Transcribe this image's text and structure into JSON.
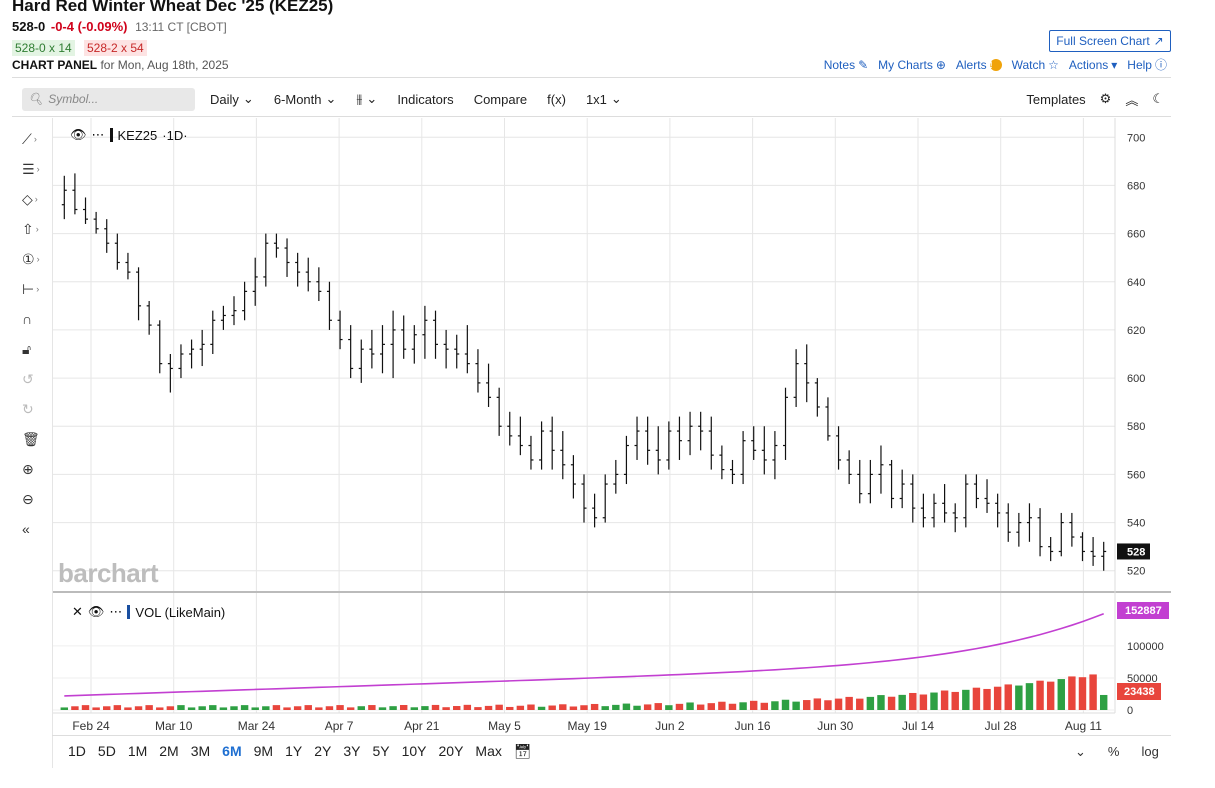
{
  "header": {
    "title": "Hard Red Winter Wheat Dec '25 (KEZ25)",
    "last": "528-0",
    "change": "-0-4 (-0.09%)",
    "time": "13:11 CT [CBOT]",
    "bid": "528-0 x 14",
    "ask": "528-2 x 54",
    "panel_label": "CHART PANEL",
    "panel_date": "for Mon, Aug 18th, 2025",
    "fullscreen_label": "Full Screen Chart",
    "links": {
      "notes": "Notes",
      "my_charts": "My Charts",
      "alerts": "Alerts",
      "watch": "Watch",
      "actions": "Actions",
      "help": "Help"
    }
  },
  "toolbar": {
    "symbol_placeholder": "Symbol...",
    "interval": "Daily",
    "period": "6-Month",
    "indicators": "Indicators",
    "compare": "Compare",
    "fx": "f(x)",
    "layout": "1x1",
    "templates": "Templates"
  },
  "legend": {
    "main": "KEZ25",
    "main_suffix": "·1D·",
    "volume": "VOL (LikeMain)"
  },
  "watermark": "barchart",
  "colors": {
    "up_volume": "#2ea043",
    "down_volume": "#e8453c",
    "volume_avg": "#c23fd1",
    "bars": "#111111",
    "accent": "#1f6fd1"
  },
  "ranges": [
    "1D",
    "5D",
    "1M",
    "2M",
    "3M",
    "6M",
    "9M",
    "1Y",
    "2Y",
    "3Y",
    "5Y",
    "10Y",
    "20Y",
    "Max"
  ],
  "active_range": "6M",
  "bottom_controls": {
    "percent": "%",
    "log": "log"
  },
  "chart_data": {
    "type": "bar",
    "x_dates": [
      "Feb 24",
      "Mar 10",
      "Mar 24",
      "Apr 7",
      "Apr 21",
      "May 5",
      "May 19",
      "Jun 2",
      "Jun 16",
      "Jun 30",
      "Jul 14",
      "Jul 28",
      "Aug 11"
    ],
    "y_ticks": [
      520,
      540,
      560,
      580,
      600,
      620,
      640,
      660,
      680,
      700
    ],
    "ylim": [
      512,
      708
    ],
    "last_price_label": "528",
    "ohlc": [
      [
        672,
        684,
        666,
        678
      ],
      [
        678,
        685,
        668,
        670
      ],
      [
        670,
        675,
        664,
        666
      ],
      [
        666,
        669,
        660,
        662
      ],
      [
        662,
        666,
        652,
        656
      ],
      [
        656,
        660,
        645,
        648
      ],
      [
        648,
        652,
        641,
        644
      ],
      [
        644,
        646,
        624,
        630
      ],
      [
        630,
        632,
        618,
        622
      ],
      [
        622,
        624,
        602,
        606
      ],
      [
        606,
        610,
        594,
        604
      ],
      [
        604,
        614,
        600,
        610
      ],
      [
        610,
        616,
        604,
        612
      ],
      [
        612,
        620,
        605,
        614
      ],
      [
        614,
        628,
        610,
        624
      ],
      [
        624,
        630,
        620,
        626
      ],
      [
        626,
        634,
        622,
        628
      ],
      [
        628,
        640,
        624,
        636
      ],
      [
        636,
        650,
        630,
        642
      ],
      [
        642,
        660,
        638,
        656
      ],
      [
        656,
        660,
        650,
        654
      ],
      [
        654,
        658,
        642,
        648
      ],
      [
        648,
        652,
        638,
        644
      ],
      [
        644,
        650,
        636,
        640
      ],
      [
        640,
        646,
        632,
        636
      ],
      [
        636,
        640,
        620,
        624
      ],
      [
        624,
        628,
        612,
        616
      ],
      [
        616,
        622,
        600,
        604
      ],
      [
        604,
        616,
        598,
        612
      ],
      [
        612,
        620,
        604,
        610
      ],
      [
        610,
        622,
        602,
        614
      ],
      [
        614,
        628,
        600,
        620
      ],
      [
        620,
        626,
        608,
        612
      ],
      [
        612,
        622,
        606,
        618
      ],
      [
        618,
        630,
        608,
        624
      ],
      [
        624,
        628,
        608,
        614
      ],
      [
        614,
        620,
        604,
        612
      ],
      [
        612,
        618,
        604,
        610
      ],
      [
        610,
        622,
        602,
        606
      ],
      [
        606,
        612,
        594,
        598
      ],
      [
        598,
        606,
        588,
        592
      ],
      [
        592,
        596,
        576,
        580
      ],
      [
        580,
        586,
        572,
        576
      ],
      [
        576,
        584,
        568,
        572
      ],
      [
        572,
        576,
        562,
        566
      ],
      [
        566,
        582,
        562,
        578
      ],
      [
        578,
        584,
        562,
        570
      ],
      [
        570,
        578,
        558,
        564
      ],
      [
        564,
        568,
        550,
        556
      ],
      [
        556,
        560,
        540,
        546
      ],
      [
        546,
        552,
        538,
        542
      ],
      [
        542,
        560,
        540,
        556
      ],
      [
        556,
        566,
        552,
        560
      ],
      [
        560,
        576,
        556,
        572
      ],
      [
        572,
        584,
        566,
        578
      ],
      [
        578,
        584,
        564,
        570
      ],
      [
        570,
        580,
        560,
        566
      ],
      [
        566,
        582,
        562,
        578
      ],
      [
        578,
        584,
        566,
        574
      ],
      [
        574,
        586,
        568,
        580
      ],
      [
        580,
        586,
        570,
        578
      ],
      [
        578,
        584,
        562,
        568
      ],
      [
        568,
        572,
        558,
        562
      ],
      [
        562,
        566,
        556,
        560
      ],
      [
        560,
        578,
        556,
        574
      ],
      [
        574,
        580,
        566,
        570
      ],
      [
        570,
        580,
        560,
        566
      ],
      [
        566,
        578,
        558,
        572
      ],
      [
        572,
        596,
        566,
        592
      ],
      [
        592,
        612,
        588,
        606
      ],
      [
        606,
        614,
        590,
        598
      ],
      [
        598,
        600,
        584,
        588
      ],
      [
        588,
        592,
        574,
        576
      ],
      [
        576,
        580,
        562,
        566
      ],
      [
        566,
        570,
        556,
        560
      ],
      [
        560,
        566,
        548,
        552
      ],
      [
        552,
        566,
        548,
        560
      ],
      [
        560,
        572,
        552,
        564
      ],
      [
        564,
        566,
        546,
        550
      ],
      [
        550,
        562,
        546,
        556
      ],
      [
        556,
        560,
        540,
        546
      ],
      [
        546,
        552,
        538,
        542
      ],
      [
        542,
        552,
        538,
        548
      ],
      [
        548,
        556,
        540,
        544
      ],
      [
        544,
        548,
        536,
        542
      ],
      [
        542,
        560,
        538,
        556
      ],
      [
        556,
        560,
        546,
        550
      ],
      [
        550,
        558,
        544,
        548
      ],
      [
        548,
        552,
        538,
        544
      ],
      [
        544,
        548,
        532,
        536
      ],
      [
        536,
        544,
        530,
        540
      ],
      [
        540,
        548,
        532,
        542
      ],
      [
        542,
        546,
        526,
        530
      ],
      [
        530,
        534,
        524,
        528
      ],
      [
        528,
        544,
        526,
        540
      ],
      [
        540,
        544,
        530,
        534
      ],
      [
        534,
        536,
        524,
        528
      ],
      [
        528,
        534,
        522,
        526
      ],
      [
        526,
        532,
        520,
        528
      ]
    ],
    "volume_ticks": [
      "0",
      "50000",
      "100000"
    ],
    "volume_last_label": "23438",
    "volume_avg_last_label": "152887",
    "volume_max": 170000
  }
}
